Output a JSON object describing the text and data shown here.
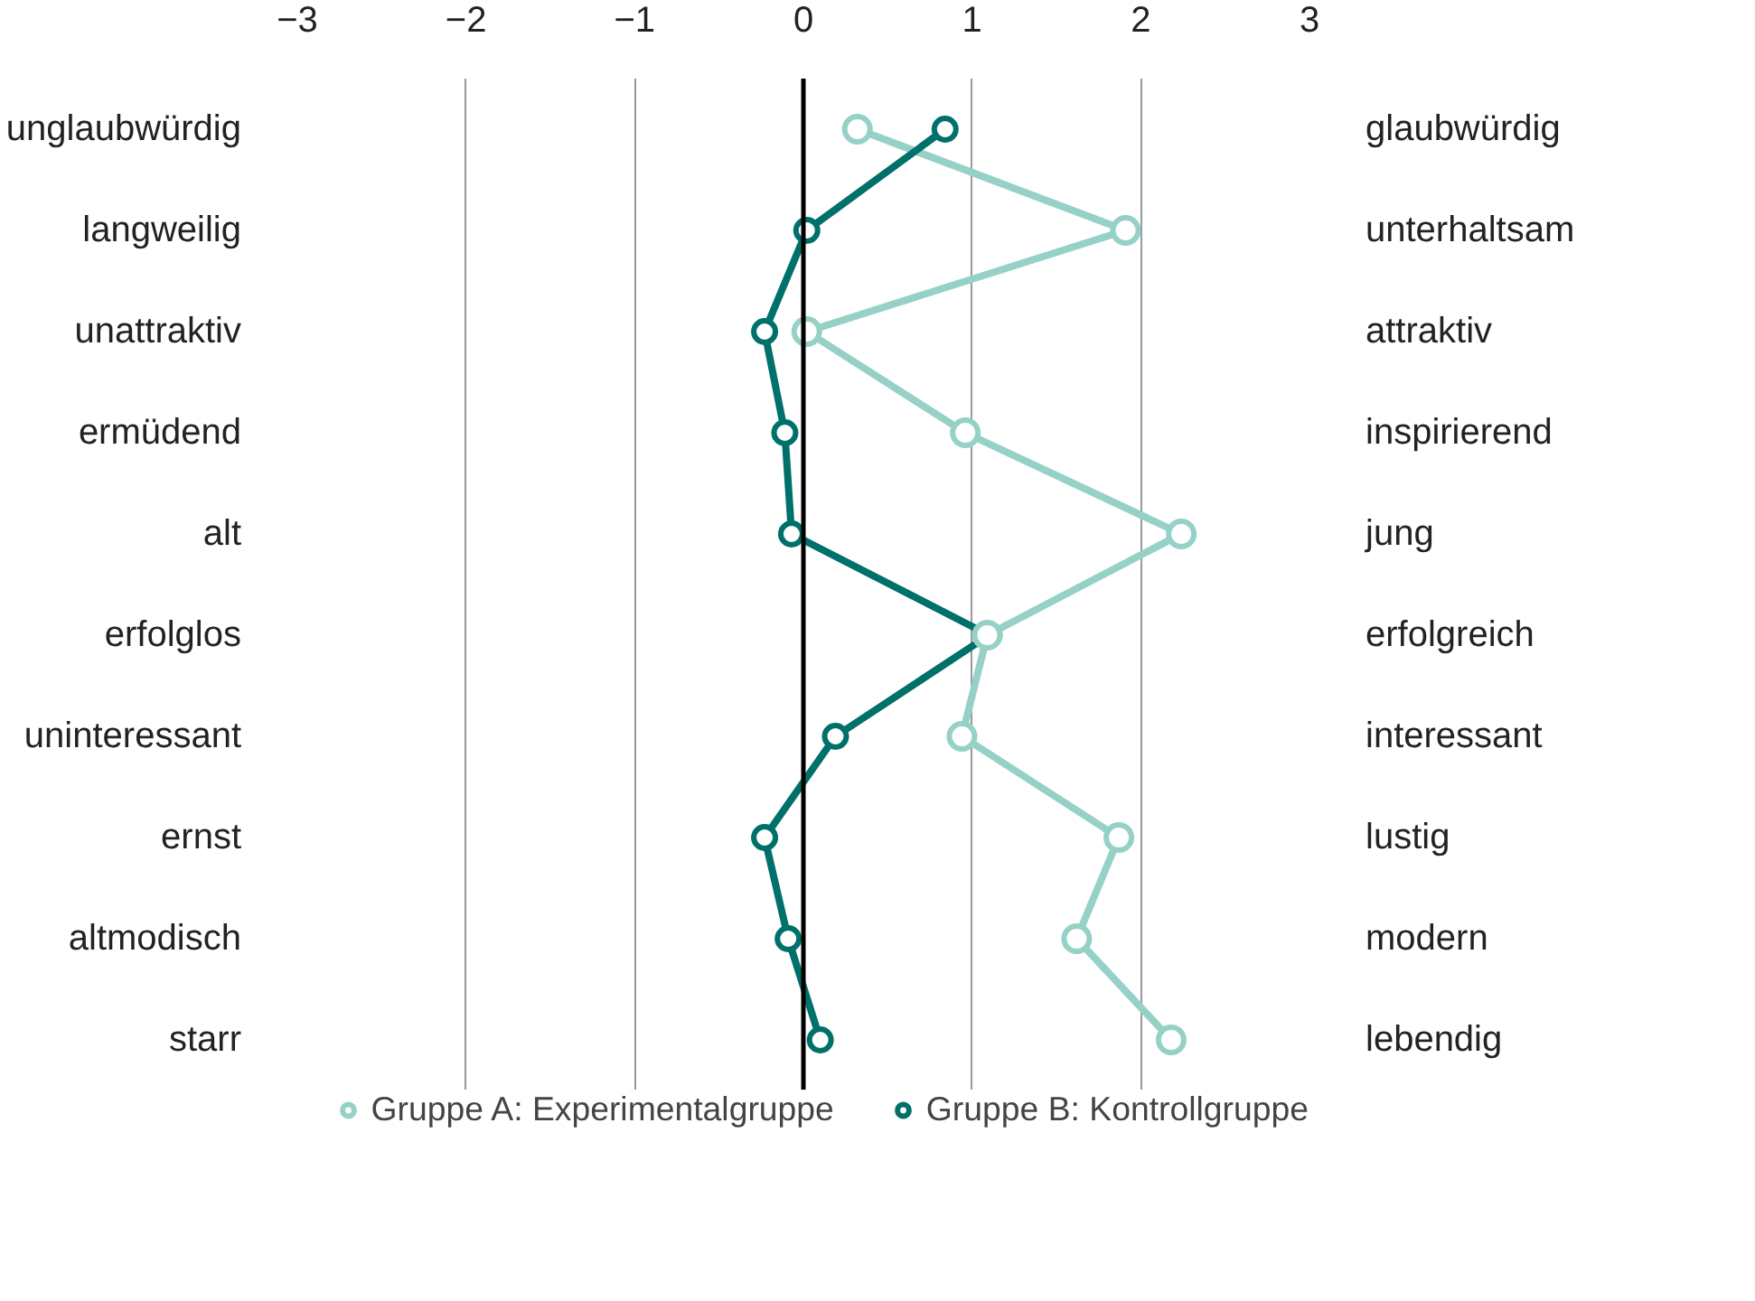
{
  "chart_data": {
    "type": "line",
    "orientation": "horizontal",
    "categories": [
      "unglaubwürdig",
      "langweilig",
      "unattraktiv",
      "ermüdend",
      "alt",
      "erfolglos",
      "uninteressant",
      "ernst",
      "altmodisch",
      "starr"
    ],
    "y2_categories": [
      "glaubwürdig",
      "unterhaltsam",
      "attraktiv",
      "inspirierend",
      "jung",
      "erfolgreich",
      "interessant",
      "lustig",
      "modern",
      "lebendig"
    ],
    "series": [
      {
        "name": "Gruppe A: Experimentalgruppe",
        "color": "#95d1c6",
        "values": [
          0.32,
          1.91,
          0.02,
          0.96,
          2.24,
          1.09,
          0.94,
          1.87,
          1.62,
          2.18
        ]
      },
      {
        "name": "Gruppe B: Kontrollgruppe",
        "color": "#00706a",
        "values": [
          0.84,
          0.02,
          -0.23,
          -0.11,
          -0.07,
          1.1,
          0.19,
          -0.23,
          -0.09,
          0.1
        ]
      }
    ],
    "xlim": [
      -3,
      3
    ],
    "xticks": [
      {
        "value": -3,
        "label": "−3"
      },
      {
        "value": -2,
        "label": "−2"
      },
      {
        "value": -1,
        "label": "−1"
      },
      0,
      1,
      2,
      3
    ],
    "ref_lines": [
      {
        "axis": "x",
        "value": 0,
        "color": "#000000"
      }
    ],
    "grid": "x",
    "legend": "bottom",
    "marker": "circle",
    "line_style": "solid"
  }
}
